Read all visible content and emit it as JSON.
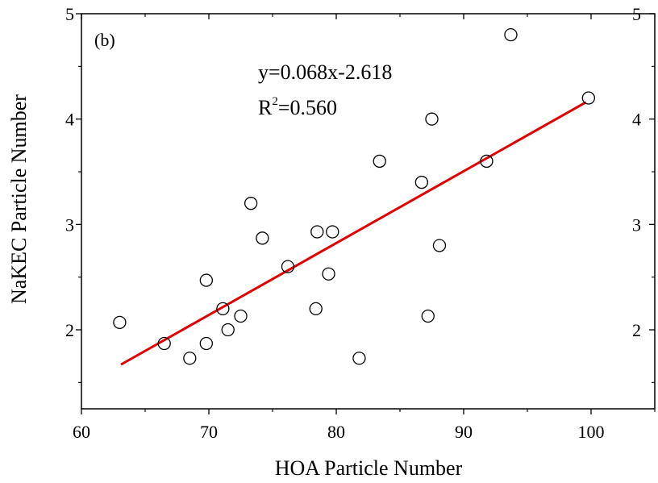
{
  "chart_data": {
    "type": "scatter",
    "panel_label": "(b)",
    "xlabel": "HOA Particle Number",
    "ylabel": "NaKEC Particle Number",
    "xlim": [
      60,
      105
    ],
    "ylim": [
      1.25,
      5
    ],
    "x_ticks": [
      60,
      70,
      80,
      90,
      100
    ],
    "y_ticks": [
      2,
      3,
      4,
      5
    ],
    "x_tick_labels": [
      "60",
      "70",
      "80",
      "90",
      "100"
    ],
    "y_tick_labels": [
      "2",
      "3",
      "4",
      "5"
    ],
    "y_right_tick_labels": [
      "2",
      "3",
      "4",
      "5"
    ],
    "grid": false,
    "points": [
      {
        "x": 63.0,
        "y": 2.07
      },
      {
        "x": 66.5,
        "y": 1.87
      },
      {
        "x": 68.5,
        "y": 1.73
      },
      {
        "x": 69.8,
        "y": 1.87
      },
      {
        "x": 69.8,
        "y": 2.47
      },
      {
        "x": 71.1,
        "y": 2.2
      },
      {
        "x": 71.5,
        "y": 2.0
      },
      {
        "x": 72.5,
        "y": 2.13
      },
      {
        "x": 73.3,
        "y": 3.2
      },
      {
        "x": 74.2,
        "y": 2.87
      },
      {
        "x": 76.2,
        "y": 2.6
      },
      {
        "x": 78.4,
        "y": 2.2
      },
      {
        "x": 78.5,
        "y": 2.93
      },
      {
        "x": 79.4,
        "y": 2.53
      },
      {
        "x": 79.7,
        "y": 2.93
      },
      {
        "x": 81.8,
        "y": 1.73
      },
      {
        "x": 83.4,
        "y": 3.6
      },
      {
        "x": 86.7,
        "y": 3.4
      },
      {
        "x": 87.2,
        "y": 2.13
      },
      {
        "x": 87.5,
        "y": 4.0
      },
      {
        "x": 88.1,
        "y": 2.8
      },
      {
        "x": 91.8,
        "y": 3.6
      },
      {
        "x": 93.7,
        "y": 4.8
      },
      {
        "x": 99.8,
        "y": 4.2
      }
    ],
    "fit_line": {
      "x": [
        63.1,
        99.6
      ],
      "y": [
        1.67,
        4.16
      ],
      "color": "#e00000"
    },
    "annotations": {
      "equation": "y=0.068x-2.618",
      "r_base": "R",
      "r_sup": "2",
      "r_value": "=0.560"
    }
  }
}
